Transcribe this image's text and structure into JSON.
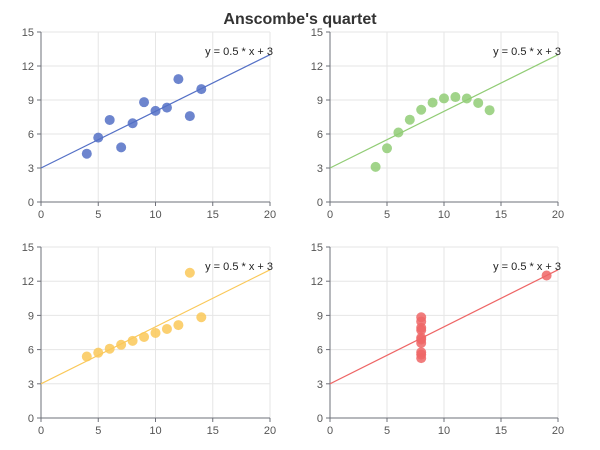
{
  "chart_data": {
    "type": "scatter",
    "title": "Anscombe's quartet",
    "grid": true,
    "panels": [
      {
        "name": "",
        "color": "#5470c6",
        "xlim": [
          0,
          20
        ],
        "ylim": [
          0,
          15
        ],
        "xticks": [
          0,
          5,
          10,
          15,
          20
        ],
        "yticks": [
          0,
          3,
          6,
          9,
          12,
          15
        ],
        "annotation": "y = 0.5 * x + 3",
        "fit_line": {
          "slope": 0.5,
          "intercept": 3
        },
        "points": [
          {
            "x": 10,
            "y": 8.04
          },
          {
            "x": 8,
            "y": 6.95
          },
          {
            "x": 13,
            "y": 7.58
          },
          {
            "x": 9,
            "y": 8.81
          },
          {
            "x": 11,
            "y": 8.33
          },
          {
            "x": 14,
            "y": 9.96
          },
          {
            "x": 6,
            "y": 7.24
          },
          {
            "x": 4,
            "y": 4.26
          },
          {
            "x": 12,
            "y": 10.84
          },
          {
            "x": 7,
            "y": 4.82
          },
          {
            "x": 5,
            "y": 5.68
          }
        ]
      },
      {
        "name": "",
        "color": "#91cc75",
        "xlim": [
          0,
          20
        ],
        "ylim": [
          0,
          15
        ],
        "xticks": [
          0,
          5,
          10,
          15,
          20
        ],
        "yticks": [
          0,
          3,
          6,
          9,
          12,
          15
        ],
        "annotation": "y = 0.5 * x + 3",
        "fit_line": {
          "slope": 0.5,
          "intercept": 3
        },
        "points": [
          {
            "x": 10,
            "y": 9.14
          },
          {
            "x": 8,
            "y": 8.14
          },
          {
            "x": 13,
            "y": 8.74
          },
          {
            "x": 9,
            "y": 8.77
          },
          {
            "x": 11,
            "y": 9.26
          },
          {
            "x": 14,
            "y": 8.1
          },
          {
            "x": 6,
            "y": 6.13
          },
          {
            "x": 4,
            "y": 3.1
          },
          {
            "x": 12,
            "y": 9.13
          },
          {
            "x": 7,
            "y": 7.26
          },
          {
            "x": 5,
            "y": 4.74
          }
        ]
      },
      {
        "name": "",
        "color": "#fac858",
        "xlim": [
          0,
          20
        ],
        "ylim": [
          0,
          15
        ],
        "xticks": [
          0,
          5,
          10,
          15,
          20
        ],
        "yticks": [
          0,
          3,
          6,
          9,
          12,
          15
        ],
        "annotation": "y = 0.5 * x + 3",
        "fit_line": {
          "slope": 0.5,
          "intercept": 3
        },
        "points": [
          {
            "x": 10,
            "y": 7.46
          },
          {
            "x": 8,
            "y": 6.77
          },
          {
            "x": 13,
            "y": 12.74
          },
          {
            "x": 9,
            "y": 7.11
          },
          {
            "x": 11,
            "y": 7.81
          },
          {
            "x": 14,
            "y": 8.84
          },
          {
            "x": 6,
            "y": 6.08
          },
          {
            "x": 4,
            "y": 5.39
          },
          {
            "x": 12,
            "y": 8.15
          },
          {
            "x": 7,
            "y": 6.42
          },
          {
            "x": 5,
            "y": 5.73
          }
        ]
      },
      {
        "name": "",
        "color": "#ee6666",
        "xlim": [
          0,
          20
        ],
        "ylim": [
          0,
          15
        ],
        "xticks": [
          0,
          5,
          10,
          15,
          20
        ],
        "yticks": [
          0,
          3,
          6,
          9,
          12,
          15
        ],
        "annotation": "y = 0.5 * x + 3",
        "fit_line": {
          "slope": 0.5,
          "intercept": 3
        },
        "points": [
          {
            "x": 8,
            "y": 6.58
          },
          {
            "x": 8,
            "y": 5.76
          },
          {
            "x": 8,
            "y": 7.71
          },
          {
            "x": 8,
            "y": 8.84
          },
          {
            "x": 8,
            "y": 8.47
          },
          {
            "x": 8,
            "y": 7.04
          },
          {
            "x": 8,
            "y": 5.25
          },
          {
            "x": 19,
            "y": 12.5
          },
          {
            "x": 8,
            "y": 5.56
          },
          {
            "x": 8,
            "y": 7.91
          },
          {
            "x": 8,
            "y": 6.89
          }
        ]
      }
    ]
  }
}
